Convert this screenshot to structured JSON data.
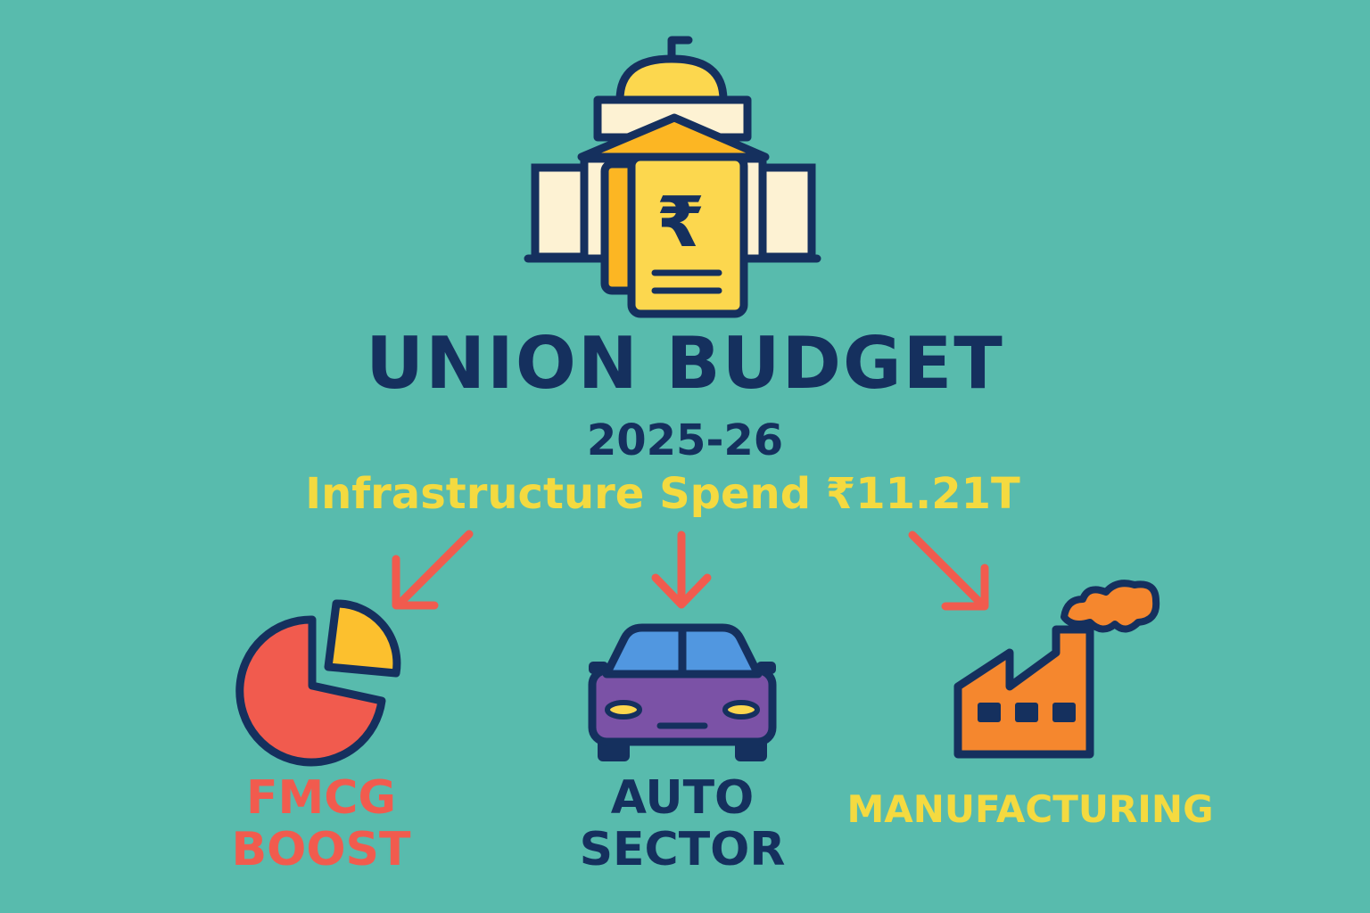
{
  "header": {
    "title": "UNION BUDGET",
    "year": "2025-26",
    "headline": "Infrastructure Spend ₹11.21T",
    "currency_symbol": "₹"
  },
  "branches": [
    {
      "label_line1": "FMCG",
      "label_line2": "BOOST",
      "icon": "pie-chart-icon",
      "color": "#F15B4E"
    },
    {
      "label_line1": "AUTO",
      "label_line2": "SECTOR",
      "icon": "car-icon",
      "color": "#15305E"
    },
    {
      "label": "MANUFACTURING",
      "icon": "factory-icon",
      "color": "#F4DA40"
    }
  ],
  "colors": {
    "background": "#58BBAD",
    "navy": "#15305E",
    "yellow": "#F4DA40",
    "coral": "#F15B4E",
    "orange": "#F5872E",
    "purple": "#7B52A6",
    "blue": "#5197E0"
  },
  "icons": {
    "central": "government-building-icon",
    "arrows": "arrow-icon"
  }
}
